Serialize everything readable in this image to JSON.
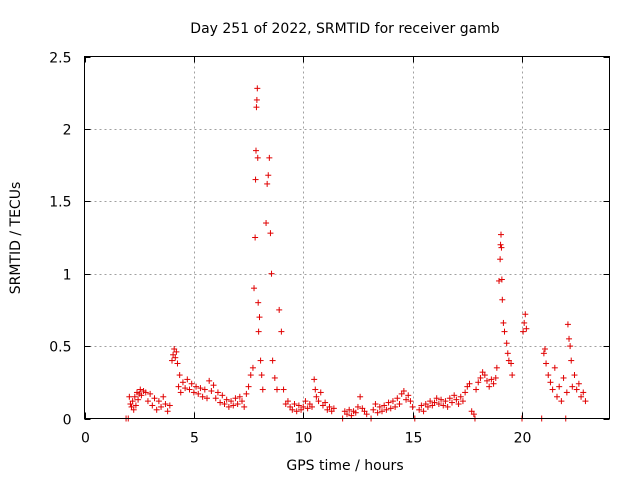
{
  "chart_data": {
    "type": "scatter",
    "title": "Day 251 of 2022, SRMTID for receiver gamb",
    "xlabel": "GPS time / hours",
    "ylabel": "SRMTID / TECUs",
    "xlim": [
      0,
      24
    ],
    "ylim": [
      0,
      2.5
    ],
    "x_ticks": [
      "0",
      "5",
      "10",
      "15",
      "20"
    ],
    "y_ticks": [
      "0",
      "0.5",
      "1",
      "1.5",
      "2",
      "2.5"
    ],
    "grid": true,
    "marker": "+",
    "series_color": "#e00000",
    "series": [
      {
        "name": "gamb",
        "points": [
          [
            1.9,
            0.0
          ],
          [
            2.0,
            0.0
          ],
          [
            2.05,
            0.15
          ],
          [
            2.1,
            0.1
          ],
          [
            2.15,
            0.08
          ],
          [
            2.2,
            0.12
          ],
          [
            2.25,
            0.06
          ],
          [
            2.3,
            0.15
          ],
          [
            2.35,
            0.09
          ],
          [
            2.4,
            0.18
          ],
          [
            2.45,
            0.13
          ],
          [
            2.5,
            0.17
          ],
          [
            2.55,
            0.2
          ],
          [
            2.6,
            0.16
          ],
          [
            2.7,
            0.19
          ],
          [
            2.8,
            0.18
          ],
          [
            2.9,
            0.12
          ],
          [
            3.0,
            0.17
          ],
          [
            3.1,
            0.09
          ],
          [
            3.2,
            0.14
          ],
          [
            3.3,
            0.06
          ],
          [
            3.4,
            0.12
          ],
          [
            3.5,
            0.08
          ],
          [
            3.6,
            0.15
          ],
          [
            3.7,
            0.1
          ],
          [
            3.8,
            0.05
          ],
          [
            3.9,
            0.09
          ],
          [
            4.0,
            0.4
          ],
          [
            4.05,
            0.44
          ],
          [
            4.1,
            0.48
          ],
          [
            4.15,
            0.42
          ],
          [
            4.2,
            0.46
          ],
          [
            4.25,
            0.38
          ],
          [
            4.3,
            0.22
          ],
          [
            4.35,
            0.3
          ],
          [
            4.4,
            0.18
          ],
          [
            4.5,
            0.25
          ],
          [
            4.6,
            0.21
          ],
          [
            4.7,
            0.27
          ],
          [
            4.8,
            0.2
          ],
          [
            4.9,
            0.24
          ],
          [
            5.0,
            0.18
          ],
          [
            5.1,
            0.22
          ],
          [
            5.2,
            0.17
          ],
          [
            5.3,
            0.21
          ],
          [
            5.4,
            0.15
          ],
          [
            5.5,
            0.2
          ],
          [
            5.6,
            0.14
          ],
          [
            5.7,
            0.26
          ],
          [
            5.8,
            0.19
          ],
          [
            5.9,
            0.23
          ],
          [
            6.0,
            0.14
          ],
          [
            6.1,
            0.18
          ],
          [
            6.2,
            0.11
          ],
          [
            6.3,
            0.16
          ],
          [
            6.4,
            0.1
          ],
          [
            6.5,
            0.13
          ],
          [
            6.6,
            0.08
          ],
          [
            6.7,
            0.12
          ],
          [
            6.8,
            0.09
          ],
          [
            6.9,
            0.14
          ],
          [
            7.0,
            0.1
          ],
          [
            7.1,
            0.15
          ],
          [
            7.2,
            0.12
          ],
          [
            7.3,
            0.08
          ],
          [
            7.4,
            0.17
          ],
          [
            7.5,
            0.22
          ],
          [
            7.6,
            0.3
          ],
          [
            7.7,
            0.35
          ],
          [
            7.75,
            0.9
          ],
          [
            7.8,
            1.25
          ],
          [
            7.82,
            1.65
          ],
          [
            7.84,
            1.85
          ],
          [
            7.86,
            2.15
          ],
          [
            7.88,
            2.2
          ],
          [
            7.9,
            2.28
          ],
          [
            7.92,
            1.8
          ],
          [
            7.94,
            0.8
          ],
          [
            7.96,
            0.6
          ],
          [
            8.0,
            0.7
          ],
          [
            8.05,
            0.4
          ],
          [
            8.1,
            0.3
          ],
          [
            8.15,
            0.2
          ],
          [
            8.3,
            1.35
          ],
          [
            8.35,
            1.62
          ],
          [
            8.4,
            1.68
          ],
          [
            8.45,
            1.8
          ],
          [
            8.5,
            1.28
          ],
          [
            8.55,
            1.0
          ],
          [
            8.6,
            0.4
          ],
          [
            8.7,
            0.28
          ],
          [
            8.8,
            0.2
          ],
          [
            8.9,
            0.75
          ],
          [
            9.0,
            0.6
          ],
          [
            9.1,
            0.2
          ],
          [
            9.2,
            0.1
          ],
          [
            9.3,
            0.12
          ],
          [
            9.4,
            0.08
          ],
          [
            9.5,
            0.06
          ],
          [
            9.6,
            0.1
          ],
          [
            9.7,
            0.05
          ],
          [
            9.8,
            0.09
          ],
          [
            9.9,
            0.06
          ],
          [
            10.0,
            0.08
          ],
          [
            10.1,
            0.12
          ],
          [
            10.2,
            0.07
          ],
          [
            10.3,
            0.1
          ],
          [
            10.4,
            0.08
          ],
          [
            10.5,
            0.27
          ],
          [
            10.55,
            0.2
          ],
          [
            10.6,
            0.15
          ],
          [
            10.7,
            0.12
          ],
          [
            10.8,
            0.18
          ],
          [
            10.9,
            0.09
          ],
          [
            11.0,
            0.11
          ],
          [
            11.1,
            0.06
          ],
          [
            11.2,
            0.08
          ],
          [
            11.3,
            0.05
          ],
          [
            11.4,
            0.07
          ],
          [
            11.8,
            0.0
          ],
          [
            11.9,
            0.05
          ],
          [
            12.0,
            0.03
          ],
          [
            12.1,
            0.06
          ],
          [
            12.2,
            0.02
          ],
          [
            12.3,
            0.05
          ],
          [
            12.4,
            0.04
          ],
          [
            12.5,
            0.08
          ],
          [
            12.6,
            0.15
          ],
          [
            12.7,
            0.07
          ],
          [
            12.8,
            0.05
          ],
          [
            12.9,
            0.03
          ],
          [
            13.1,
            0.0
          ],
          [
            13.2,
            0.06
          ],
          [
            13.3,
            0.1
          ],
          [
            13.4,
            0.04
          ],
          [
            13.5,
            0.08
          ],
          [
            13.6,
            0.05
          ],
          [
            13.7,
            0.09
          ],
          [
            13.8,
            0.06
          ],
          [
            13.9,
            0.11
          ],
          [
            14.0,
            0.07
          ],
          [
            14.1,
            0.12
          ],
          [
            14.2,
            0.08
          ],
          [
            14.3,
            0.14
          ],
          [
            14.4,
            0.1
          ],
          [
            14.5,
            0.17
          ],
          [
            14.6,
            0.19
          ],
          [
            14.7,
            0.13
          ],
          [
            14.8,
            0.16
          ],
          [
            14.9,
            0.12
          ],
          [
            15.0,
            0.08
          ],
          [
            15.1,
            0.0
          ],
          [
            15.3,
            0.06
          ],
          [
            15.4,
            0.09
          ],
          [
            15.5,
            0.05
          ],
          [
            15.6,
            0.1
          ],
          [
            15.7,
            0.08
          ],
          [
            15.8,
            0.12
          ],
          [
            15.9,
            0.09
          ],
          [
            16.0,
            0.11
          ],
          [
            16.1,
            0.14
          ],
          [
            16.2,
            0.1
          ],
          [
            16.3,
            0.13
          ],
          [
            16.4,
            0.09
          ],
          [
            16.5,
            0.12
          ],
          [
            16.6,
            0.08
          ],
          [
            16.7,
            0.14
          ],
          [
            16.8,
            0.11
          ],
          [
            16.9,
            0.16
          ],
          [
            17.0,
            0.13
          ],
          [
            17.1,
            0.1
          ],
          [
            17.2,
            0.15
          ],
          [
            17.3,
            0.12
          ],
          [
            17.4,
            0.18
          ],
          [
            17.5,
            0.22
          ],
          [
            17.6,
            0.24
          ],
          [
            17.7,
            0.05
          ],
          [
            17.8,
            0.03
          ],
          [
            17.85,
            0.0
          ],
          [
            17.9,
            0.2
          ],
          [
            18.0,
            0.25
          ],
          [
            18.1,
            0.28
          ],
          [
            18.2,
            0.32
          ],
          [
            18.3,
            0.3
          ],
          [
            18.4,
            0.26
          ],
          [
            18.5,
            0.22
          ],
          [
            18.6,
            0.27
          ],
          [
            18.7,
            0.24
          ],
          [
            18.8,
            0.28
          ],
          [
            18.85,
            0.35
          ],
          [
            18.95,
            0.95
          ],
          [
            19.0,
            1.1
          ],
          [
            19.02,
            1.2
          ],
          [
            19.04,
            1.27
          ],
          [
            19.06,
            1.18
          ],
          [
            19.08,
            0.96
          ],
          [
            19.1,
            0.82
          ],
          [
            19.15,
            0.66
          ],
          [
            19.2,
            0.6
          ],
          [
            19.3,
            0.52
          ],
          [
            19.35,
            0.45
          ],
          [
            19.4,
            0.4
          ],
          [
            19.5,
            0.38
          ],
          [
            19.55,
            0.3
          ],
          [
            20.0,
            0.0
          ],
          [
            20.05,
            0.6
          ],
          [
            20.1,
            0.66
          ],
          [
            20.15,
            0.72
          ],
          [
            20.2,
            0.62
          ],
          [
            20.9,
            0.0
          ],
          [
            21.0,
            0.45
          ],
          [
            21.05,
            0.48
          ],
          [
            21.1,
            0.38
          ],
          [
            21.2,
            0.3
          ],
          [
            21.3,
            0.25
          ],
          [
            21.4,
            0.2
          ],
          [
            21.5,
            0.35
          ],
          [
            21.6,
            0.15
          ],
          [
            21.7,
            0.22
          ],
          [
            21.8,
            0.12
          ],
          [
            21.9,
            0.28
          ],
          [
            22.0,
            0.0
          ],
          [
            22.05,
            0.18
          ],
          [
            22.1,
            0.65
          ],
          [
            22.15,
            0.55
          ],
          [
            22.2,
            0.5
          ],
          [
            22.25,
            0.4
          ],
          [
            22.3,
            0.22
          ],
          [
            22.4,
            0.3
          ],
          [
            22.5,
            0.2
          ],
          [
            22.6,
            0.24
          ],
          [
            22.7,
            0.15
          ],
          [
            22.8,
            0.18
          ],
          [
            22.9,
            0.12
          ]
        ]
      }
    ]
  }
}
